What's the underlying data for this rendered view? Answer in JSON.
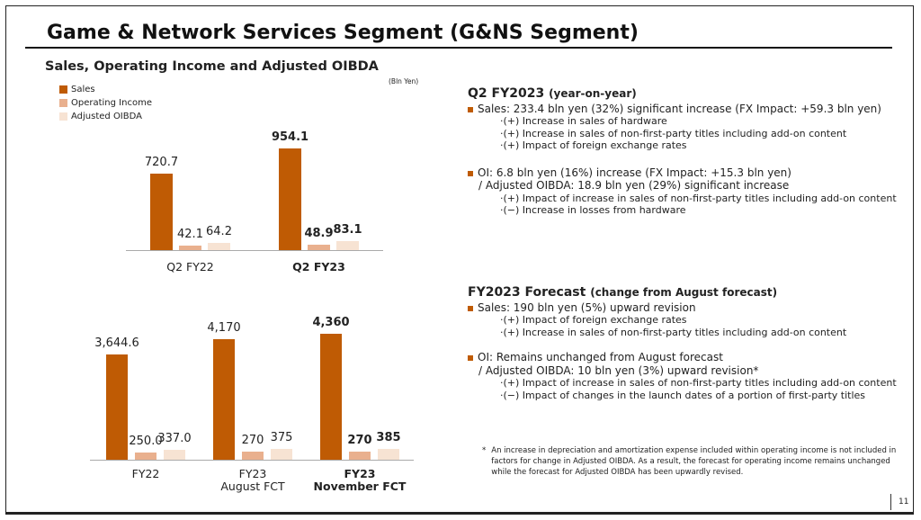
{
  "slide": {
    "title": "Game & Network Services Segment (G&NS Segment)",
    "subtitle": "Sales, Operating Income and Adjusted OIBDA",
    "unit": "(Bln Yen)",
    "page_number": "11",
    "legend": [
      "Sales",
      "Operating Income",
      "Adjusted OIBDA"
    ],
    "colors": {
      "sales": "#BF5B04",
      "operating_income": "#E9B08E",
      "adjusted_oibda": "#F7E3D3"
    }
  },
  "chart_data": [
    {
      "type": "bar",
      "title": "",
      "categories": [
        "Q2 FY22",
        "Q2 FY23"
      ],
      "series": [
        {
          "name": "Sales",
          "values": [
            720.7,
            954.1
          ],
          "labels": [
            "720.7",
            "954.1"
          ]
        },
        {
          "name": "Operating Income",
          "values": [
            42.1,
            48.9
          ],
          "labels": [
            "42.1",
            "48.9"
          ]
        },
        {
          "name": "Adjusted OIBDA",
          "values": [
            64.2,
            83.1
          ],
          "labels": [
            "64.2",
            "83.1"
          ]
        }
      ],
      "xlabel": "",
      "ylabel": "",
      "grid": false,
      "legend": "top-left"
    },
    {
      "type": "bar",
      "title": "",
      "categories": [
        "FY22",
        "FY23\nAugust FCT",
        "FY23\nNovember FCT"
      ],
      "series": [
        {
          "name": "Sales",
          "values": [
            3644.6,
            4170,
            4360
          ],
          "labels": [
            "3,644.6",
            "4,170",
            "4,360"
          ]
        },
        {
          "name": "Operating Income",
          "values": [
            250.0,
            270,
            270
          ],
          "labels": [
            "250.0",
            "270",
            "270"
          ]
        },
        {
          "name": "Adjusted OIBDA",
          "values": [
            337.0,
            375,
            385
          ],
          "labels": [
            "337.0",
            "375",
            "385"
          ]
        }
      ],
      "xlabel": "",
      "ylabel": "",
      "grid": false,
      "legend": "top-left"
    }
  ],
  "q2": {
    "heading": "Q2 FY2023",
    "heading_note": "(year-on-year)",
    "sales": "Sales: 233.4 bln yen (32%) significant increase (FX Impact: +59.3 bln yen)",
    "sales_items": [
      "·(+) Increase in sales of hardware",
      "·(+) Increase in sales of non-first-party titles including add-on content",
      "·(+) Impact of foreign exchange rates"
    ],
    "oi": "OI:  6.8 bln yen (16%) increase  (FX Impact: +15.3 bln yen)",
    "oi_cont": "/ Adjusted OIBDA: 18.9 bln yen (29%) significant increase",
    "oi_items": [
      "·(+) Impact of increase in sales of non-first-party titles including add-on content",
      "·(−) Increase in losses from hardware"
    ]
  },
  "fct": {
    "heading": "FY2023 Forecast",
    "heading_note": "(change from August forecast)",
    "sales": "Sales: 190 bln yen (5%) upward revision",
    "sales_items": [
      "·(+) Impact of foreign exchange rates",
      "·(+) Increase in sales of non-first-party titles including add-on content"
    ],
    "oi": "OI: Remains unchanged from August forecast",
    "oi_cont": "/ Adjusted OIBDA: 10 bln yen (3%) upward revision*",
    "oi_items": [
      "·(+) Impact of increase in sales of non-first-party titles including add-on content",
      "·(−) Impact of changes in the launch dates of a portion of first-party titles"
    ]
  },
  "footnote": {
    "mark": "*",
    "text": "An increase in depreciation and amortization expense included within operating income is not included in factors for change in Adjusted OIBDA. As a result, the forecast for operating income remains unchanged while the forecast for Adjusted OIBDA has been upwardly revised."
  }
}
